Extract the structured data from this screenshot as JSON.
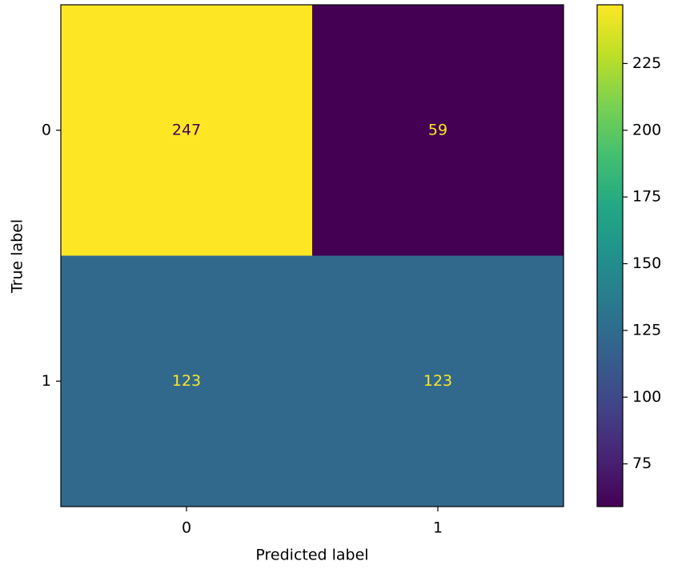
{
  "chart_data": {
    "type": "heatmap",
    "x_label": "Predicted label",
    "y_label": "True label",
    "x_categories": [
      "0",
      "1"
    ],
    "y_categories": [
      "0",
      "1"
    ],
    "values": [
      [
        247,
        59
      ],
      [
        123,
        123
      ]
    ],
    "colormap": "viridis",
    "clim": [
      59,
      247
    ],
    "cticks": [
      75,
      100,
      125,
      150,
      175,
      200,
      225
    ]
  }
}
